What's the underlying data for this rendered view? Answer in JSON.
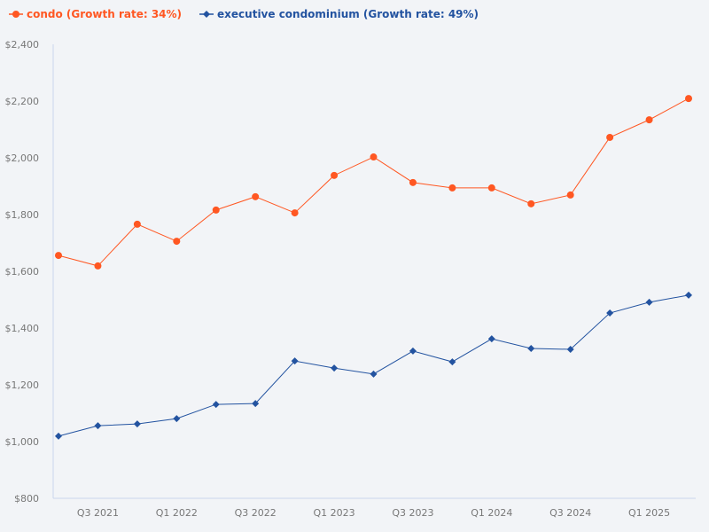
{
  "chart_data": {
    "type": "line",
    "title": "",
    "xlabel": "",
    "ylabel": "",
    "x": [
      "Q2 2021",
      "Q3 2021",
      "Q4 2021",
      "Q1 2022",
      "Q2 2022",
      "Q3 2022",
      "Q4 2022",
      "Q1 2023",
      "Q2 2023",
      "Q3 2023",
      "Q4 2023",
      "Q1 2024",
      "Q2 2024",
      "Q3 2024",
      "Q4 2024",
      "Q1 2025",
      "Q2 2025"
    ],
    "x_tick_labels": [
      "Q3 2021",
      "Q1 2022",
      "Q3 2022",
      "Q1 2023",
      "Q3 2023",
      "Q1 2024",
      "Q3 2024",
      "Q1 2025"
    ],
    "y_tick_labels": [
      "$800",
      "$1,000",
      "$1,200",
      "$1,400",
      "$1,600",
      "$1,800",
      "$2,000",
      "$2,200",
      "$2,400"
    ],
    "ylim": [
      800,
      2400
    ],
    "grid": false,
    "legend_position": "top-left",
    "series": [
      {
        "name": "condo (Growth rate: 34%)",
        "color": "#ff5722",
        "marker": "circle",
        "values": [
          1656,
          1619,
          1766,
          1706,
          1816,
          1863,
          1806,
          1938,
          2003,
          1913,
          1894,
          1894,
          1838,
          1869,
          2072,
          2134,
          2209
        ]
      },
      {
        "name": "executive condominium (Growth rate: 49%)",
        "color": "#2353a0",
        "marker": "diamond",
        "values": [
          1019,
          1056,
          1062,
          1081,
          1131,
          1134,
          1284,
          1259,
          1238,
          1319,
          1281,
          1362,
          1328,
          1325,
          1453,
          1491,
          1516
        ]
      }
    ]
  }
}
